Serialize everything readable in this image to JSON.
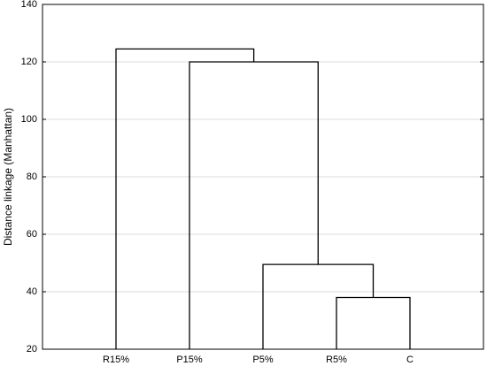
{
  "chart_data": {
    "type": "dendrogram",
    "y_label": "Distance linkage (Manhattan)",
    "categories": [
      "R15%",
      "P15%",
      "P5%",
      "R5%",
      "C"
    ],
    "merges": [
      {
        "children": [
          3,
          4
        ],
        "height": 38
      },
      {
        "children": [
          2,
          5
        ],
        "height": 49.5
      },
      {
        "children": [
          1,
          6
        ],
        "height": 120
      },
      {
        "children": [
          0,
          7
        ],
        "height": 124.5
      }
    ],
    "color": "#000000",
    "ylim": [
      20,
      140
    ],
    "yticks": [
      20,
      40,
      60,
      80,
      100,
      120,
      140
    ],
    "grid": true
  }
}
